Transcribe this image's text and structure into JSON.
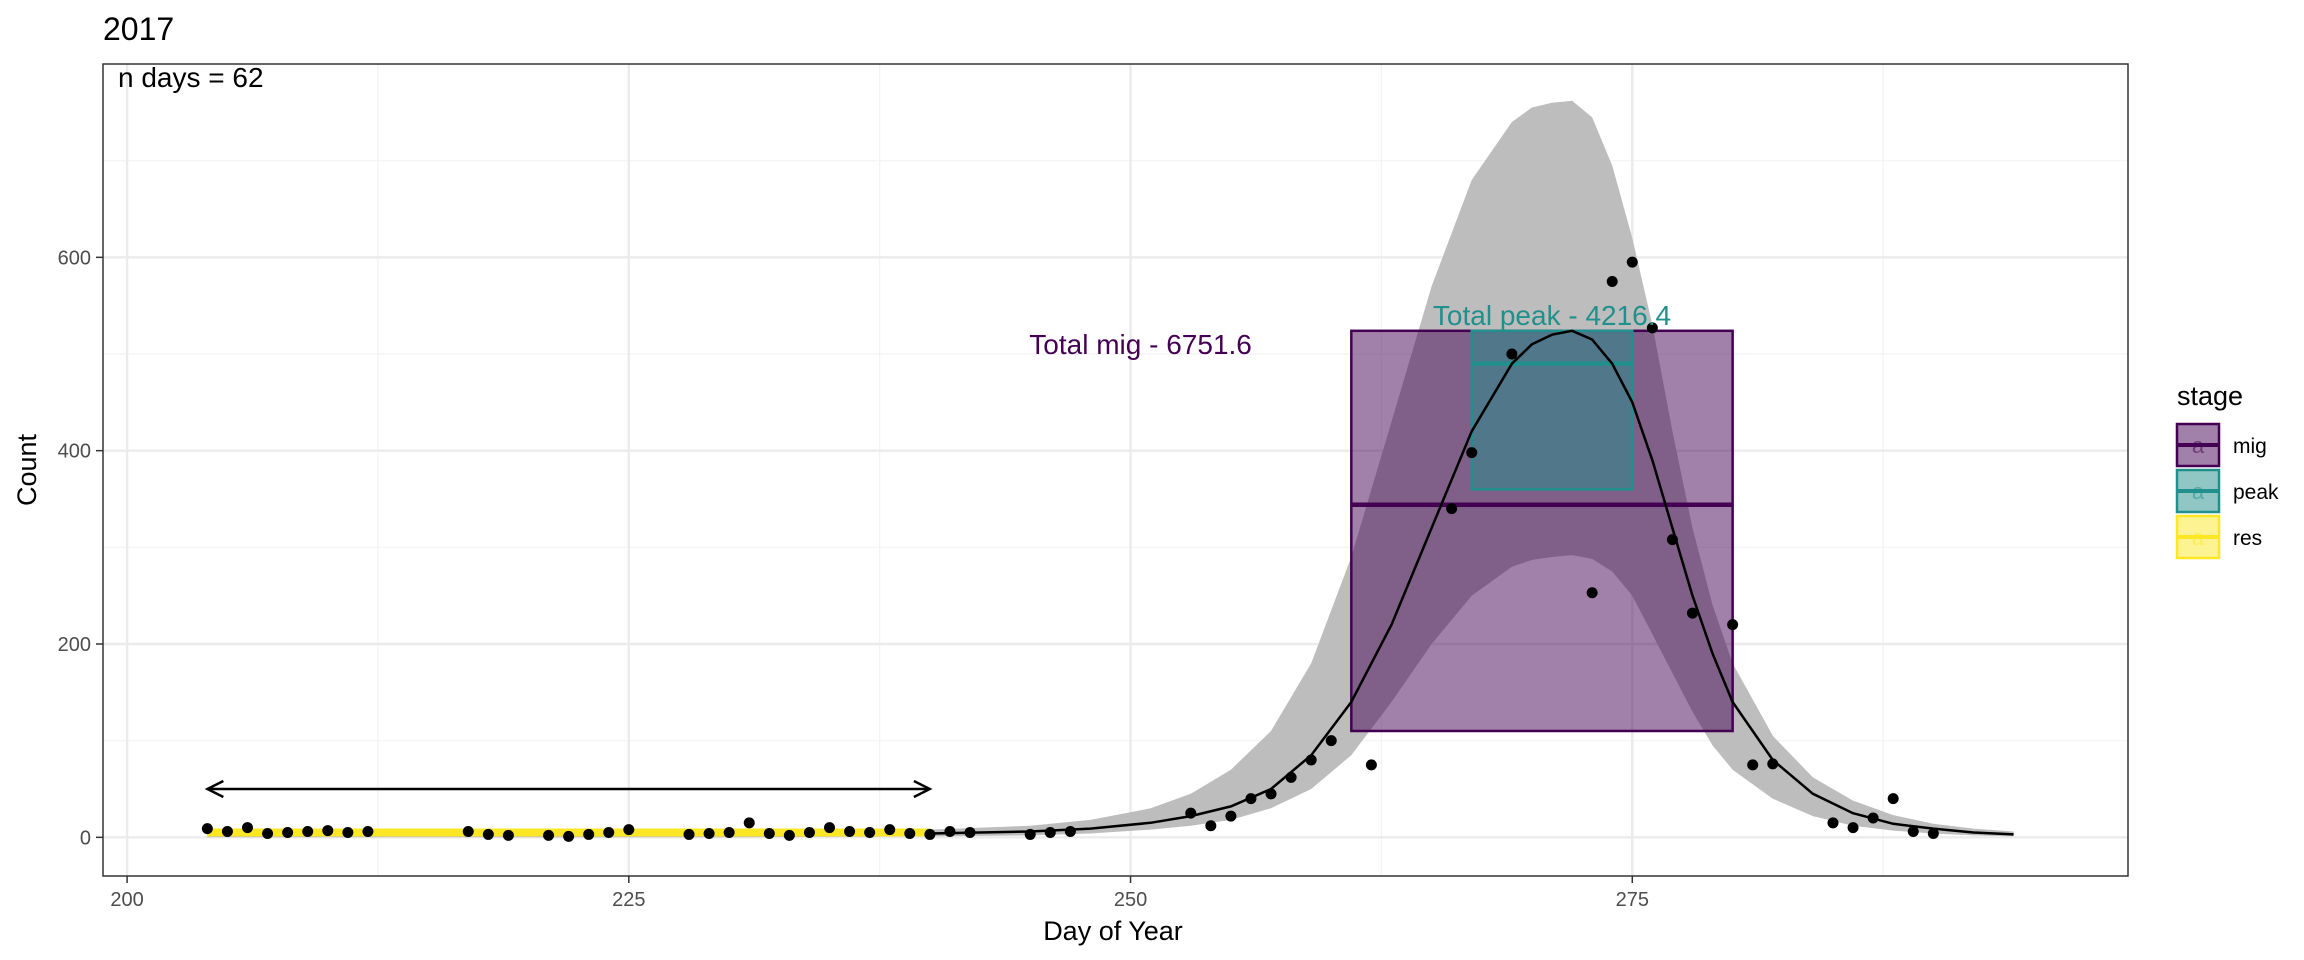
{
  "chart_data": {
    "type": "scatter",
    "title": "2017",
    "xlabel": "Day of Year",
    "ylabel": "Count",
    "xlim": [
      198.8,
      299.7
    ],
    "ylim": [
      -40,
      800
    ],
    "x_ticks": [
      200,
      225,
      250,
      275
    ],
    "y_ticks": [
      0,
      200,
      400,
      600
    ],
    "x_minor": [
      212.5,
      237.5,
      262.5,
      287.5
    ],
    "y_minor": [
      100,
      300,
      500,
      700
    ],
    "grid": true,
    "legend_position": "right",
    "annotation_top_left": "n days = 62",
    "points": [
      [
        204,
        9
      ],
      [
        205,
        6
      ],
      [
        206,
        10
      ],
      [
        207,
        4
      ],
      [
        208,
        5
      ],
      [
        209,
        6
      ],
      [
        210,
        7
      ],
      [
        211,
        5
      ],
      [
        212,
        6
      ],
      [
        217,
        6
      ],
      [
        218,
        3
      ],
      [
        219,
        2
      ],
      [
        221,
        2
      ],
      [
        222,
        1
      ],
      [
        223,
        3
      ],
      [
        224,
        5
      ],
      [
        225,
        8
      ],
      [
        228,
        3
      ],
      [
        229,
        4
      ],
      [
        230,
        5
      ],
      [
        231,
        15
      ],
      [
        232,
        4
      ],
      [
        233,
        2
      ],
      [
        234,
        5
      ],
      [
        235,
        10
      ],
      [
        236,
        6
      ],
      [
        237,
        5
      ],
      [
        238,
        8
      ],
      [
        239,
        4
      ],
      [
        240,
        3
      ],
      [
        241,
        6
      ],
      [
        242,
        5
      ],
      [
        245,
        3
      ],
      [
        246,
        5
      ],
      [
        247,
        6
      ],
      [
        253,
        25
      ],
      [
        254,
        12
      ],
      [
        255,
        22
      ],
      [
        256,
        40
      ],
      [
        257,
        45
      ],
      [
        258,
        62
      ],
      [
        259,
        80
      ],
      [
        260,
        100
      ],
      [
        262,
        75
      ],
      [
        266,
        340
      ],
      [
        267,
        398
      ],
      [
        269,
        500
      ],
      [
        273,
        253
      ],
      [
        274,
        575
      ],
      [
        275,
        595
      ],
      [
        276,
        527
      ],
      [
        277,
        308
      ],
      [
        278,
        232
      ],
      [
        280,
        220
      ],
      [
        281,
        75
      ],
      [
        282,
        76
      ],
      [
        285,
        15
      ],
      [
        286,
        10
      ],
      [
        287,
        20
      ],
      [
        288,
        40
      ],
      [
        289,
        6
      ],
      [
        290,
        4
      ]
    ],
    "fit_curve": [
      [
        204,
        3
      ],
      [
        230,
        4
      ],
      [
        240,
        4
      ],
      [
        245,
        6
      ],
      [
        248,
        9
      ],
      [
        251,
        15
      ],
      [
        253,
        22
      ],
      [
        255,
        32
      ],
      [
        257,
        50
      ],
      [
        259,
        85
      ],
      [
        261,
        140
      ],
      [
        263,
        220
      ],
      [
        265,
        320
      ],
      [
        267,
        420
      ],
      [
        269,
        490
      ],
      [
        270,
        510
      ],
      [
        271,
        520
      ],
      [
        272,
        524
      ],
      [
        273,
        515
      ],
      [
        274,
        490
      ],
      [
        275,
        450
      ],
      [
        276,
        390
      ],
      [
        277,
        320
      ],
      [
        278,
        250
      ],
      [
        279,
        190
      ],
      [
        280,
        140
      ],
      [
        282,
        80
      ],
      [
        284,
        45
      ],
      [
        286,
        25
      ],
      [
        288,
        14
      ],
      [
        290,
        9
      ],
      [
        292,
        5
      ],
      [
        294,
        3
      ]
    ],
    "ribbon": [
      [
        204,
        0,
        5
      ],
      [
        230,
        0,
        6
      ],
      [
        240,
        1,
        8
      ],
      [
        245,
        2,
        12
      ],
      [
        248,
        4,
        18
      ],
      [
        251,
        8,
        30
      ],
      [
        253,
        12,
        45
      ],
      [
        255,
        18,
        70
      ],
      [
        257,
        30,
        110
      ],
      [
        259,
        50,
        180
      ],
      [
        261,
        85,
        290
      ],
      [
        263,
        140,
        430
      ],
      [
        265,
        200,
        570
      ],
      [
        267,
        250,
        680
      ],
      [
        269,
        280,
        740
      ],
      [
        270,
        287,
        755
      ],
      [
        271,
        290,
        760
      ],
      [
        272,
        292,
        762
      ],
      [
        273,
        288,
        745
      ],
      [
        274,
        275,
        695
      ],
      [
        275,
        250,
        620
      ],
      [
        276,
        210,
        530
      ],
      [
        277,
        170,
        420
      ],
      [
        278,
        130,
        320
      ],
      [
        279,
        95,
        240
      ],
      [
        280,
        70,
        180
      ],
      [
        282,
        40,
        105
      ],
      [
        284,
        22,
        62
      ],
      [
        286,
        12,
        38
      ],
      [
        288,
        7,
        23
      ],
      [
        290,
        4,
        14
      ],
      [
        292,
        2,
        9
      ],
      [
        294,
        1,
        6
      ]
    ],
    "series": [
      {
        "name": "mig",
        "color": "#440154",
        "box": {
          "xmin": 261,
          "xmax": 280,
          "ymin": 110,
          "ymax": 524,
          "mean": 344
        }
      },
      {
        "name": "peak",
        "color": "#21908C",
        "box": {
          "xmin": 267,
          "xmax": 275,
          "ymin": 360,
          "ymax": 524,
          "mean": 490
        }
      },
      {
        "name": "res",
        "color": "#FDE725",
        "segment": {
          "xmin": 204,
          "xmax": 240,
          "y": 5
        }
      }
    ],
    "annotations": [
      {
        "text": "Total mig - 6751.6",
        "x": 250.5,
        "y": 500,
        "color": "#440154"
      },
      {
        "text": "Total peak - 4216.4",
        "x": 271,
        "y": 530,
        "color": "#21908C"
      }
    ],
    "arrow": {
      "x1": 204,
      "x2": 240,
      "y": 50
    },
    "legend": {
      "title": "stage",
      "items": [
        {
          "label": "mig",
          "key": "a",
          "color": "#440154"
        },
        {
          "label": "peak",
          "key": "a",
          "color": "#21908C"
        },
        {
          "label": "res",
          "key": "a",
          "color": "#FDE725"
        }
      ]
    }
  }
}
